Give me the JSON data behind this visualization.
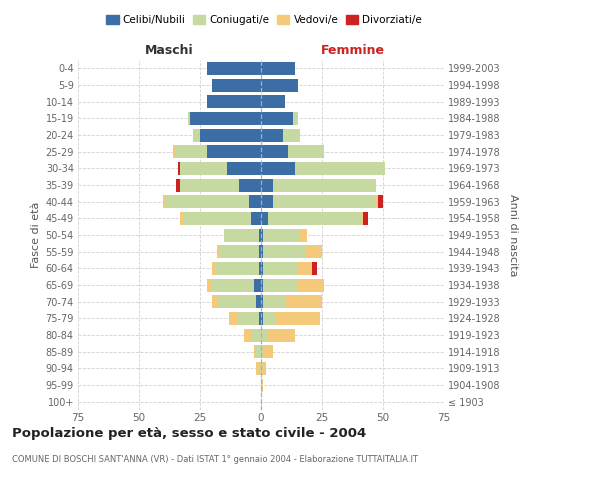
{
  "age_groups": [
    "100+",
    "95-99",
    "90-94",
    "85-89",
    "80-84",
    "75-79",
    "70-74",
    "65-69",
    "60-64",
    "55-59",
    "50-54",
    "45-49",
    "40-44",
    "35-39",
    "30-34",
    "25-29",
    "20-24",
    "15-19",
    "10-14",
    "5-9",
    "0-4"
  ],
  "birth_years": [
    "≤ 1903",
    "1904-1908",
    "1909-1913",
    "1914-1918",
    "1919-1923",
    "1924-1928",
    "1929-1933",
    "1934-1938",
    "1939-1943",
    "1944-1948",
    "1949-1953",
    "1954-1958",
    "1959-1963",
    "1964-1968",
    "1969-1973",
    "1974-1978",
    "1979-1983",
    "1984-1988",
    "1989-1993",
    "1994-1998",
    "1999-2003"
  ],
  "maschi_celibi": [
    0,
    0,
    0,
    0,
    0,
    1,
    2,
    3,
    1,
    1,
    1,
    4,
    5,
    9,
    14,
    22,
    25,
    29,
    22,
    20,
    22
  ],
  "maschi_coniugati": [
    0,
    0,
    1,
    2,
    4,
    9,
    16,
    17,
    18,
    16,
    14,
    28,
    34,
    24,
    19,
    13,
    3,
    1,
    0,
    0,
    0
  ],
  "maschi_vedovi": [
    0,
    0,
    1,
    1,
    3,
    3,
    2,
    2,
    1,
    1,
    0,
    1,
    1,
    0,
    0,
    1,
    0,
    0,
    0,
    0,
    0
  ],
  "maschi_divorziati": [
    0,
    0,
    0,
    0,
    0,
    0,
    0,
    0,
    0,
    0,
    0,
    0,
    0,
    2,
    1,
    0,
    0,
    0,
    0,
    0,
    0
  ],
  "femmine_nubili": [
    0,
    0,
    0,
    0,
    0,
    1,
    1,
    1,
    1,
    1,
    1,
    3,
    5,
    5,
    14,
    11,
    9,
    13,
    10,
    15,
    14
  ],
  "femmine_coniugate": [
    0,
    0,
    0,
    1,
    3,
    5,
    9,
    14,
    14,
    17,
    15,
    38,
    42,
    42,
    37,
    15,
    7,
    2,
    0,
    0,
    0
  ],
  "femmine_vedove": [
    0,
    1,
    2,
    4,
    11,
    18,
    15,
    11,
    6,
    7,
    3,
    1,
    1,
    0,
    0,
    0,
    0,
    0,
    0,
    0,
    0
  ],
  "femmine_divorziate": [
    0,
    0,
    0,
    0,
    0,
    0,
    0,
    0,
    2,
    0,
    0,
    2,
    2,
    0,
    0,
    0,
    0,
    0,
    0,
    0,
    0
  ],
  "color_celibi": "#3a6ea5",
  "color_coniugati": "#c5d9a0",
  "color_vedovi": "#f5c97a",
  "color_divorziati": "#cc2222",
  "title": "Popolazione per età, sesso e stato civile - 2004",
  "subtitle": "COMUNE DI BOSCHI SANT'ANNA (VR) - Dati ISTAT 1° gennaio 2004 - Elaborazione TUTTAITALIA.IT",
  "legend_labels": [
    "Celibi/Nubili",
    "Coniugati/e",
    "Vedovi/e",
    "Divorziati/e"
  ],
  "xlim": 75,
  "background": "#ffffff",
  "grid_color": "#cccccc"
}
